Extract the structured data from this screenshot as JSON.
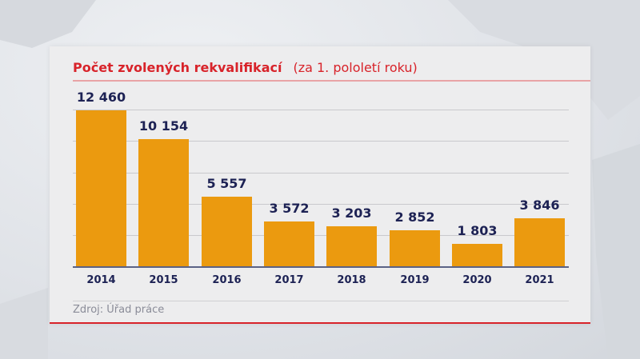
{
  "title": "Počet zvolených rekvalifikací",
  "subtitle": "(za 1. pololetí roku)",
  "source": "Zdroj: Úřad práce",
  "colors": {
    "bar": "#eb9a0f",
    "title": "#d8232a",
    "label": "#1d2254"
  },
  "chart_data": {
    "type": "bar",
    "title": "Počet zvolených rekvalifikací (za 1. pololetí roku)",
    "xlabel": "",
    "ylabel": "",
    "categories": [
      "2014",
      "2015",
      "2016",
      "2017",
      "2018",
      "2019",
      "2020",
      "2021"
    ],
    "values": [
      12460,
      10154,
      5557,
      3572,
      3203,
      2852,
      1803,
      3846
    ],
    "value_labels": [
      "12 460",
      "10 154",
      "5 557",
      "3 572",
      "3 203",
      "2 852",
      "1 803",
      "3 846"
    ],
    "ylim": [
      0,
      12500
    ],
    "grid": true,
    "grid_step": 2500,
    "legend": null,
    "source": "Zdroj: Úřad práce"
  }
}
